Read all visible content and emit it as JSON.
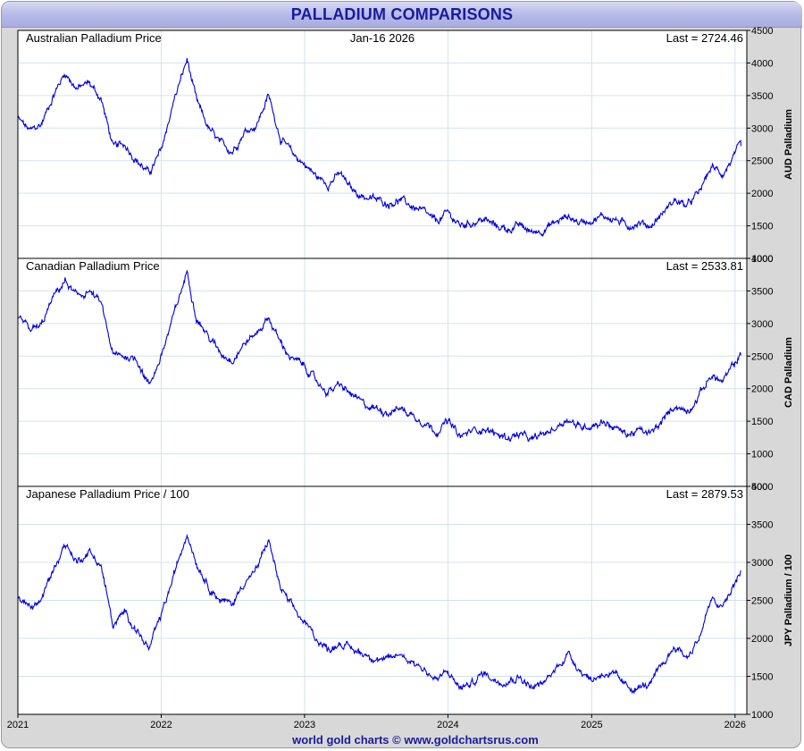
{
  "header": {
    "title": "PALLADIUM COMPARISONS"
  },
  "footer": {
    "credit": "world gold charts © www.goldchartsrus.com"
  },
  "colors": {
    "line": "#0000dd",
    "grid": "#d0e4ea",
    "panel_bg": "#ffffff",
    "title": "#1a1aa0"
  },
  "chart_data": [
    {
      "type": "line",
      "panel_label": "Australian Palladium Price",
      "date_label": "Jan-16 2026",
      "last_label": "Last = 2724.46",
      "ylabel": "AUD Palladium",
      "ylim": [
        1000,
        4500
      ],
      "yticks": [
        "1000",
        "1500",
        "2000",
        "2500",
        "3000",
        "3500",
        "4000",
        "4500"
      ],
      "series": [
        {
          "x": [
            "2021-01-01",
            "2021-02-01",
            "2021-03-01",
            "2021-04-01",
            "2021-05-01",
            "2021-06-01",
            "2021-07-01",
            "2021-08-01",
            "2021-09-01",
            "2021-10-01",
            "2021-11-01",
            "2021-12-01",
            "2022-01-01",
            "2022-02-01",
            "2022-03-08",
            "2022-04-01",
            "2022-05-01",
            "2022-06-01",
            "2022-07-01",
            "2022-08-01",
            "2022-09-01",
            "2022-10-01",
            "2022-11-01",
            "2022-12-01",
            "2023-01-01",
            "2023-02-01",
            "2023-03-01",
            "2023-04-01",
            "2023-05-01",
            "2023-06-01",
            "2023-07-01",
            "2023-08-01",
            "2023-09-01",
            "2023-10-01",
            "2023-11-01",
            "2023-12-01",
            "2024-01-01",
            "2024-02-01",
            "2024-03-01",
            "2024-04-01",
            "2024-05-01",
            "2024-06-01",
            "2024-07-01",
            "2024-08-01",
            "2024-09-01",
            "2024-10-01",
            "2024-11-01",
            "2024-12-01",
            "2025-01-01",
            "2025-02-01",
            "2025-03-01",
            "2025-04-01",
            "2025-05-01",
            "2025-06-01",
            "2025-07-01",
            "2025-08-01",
            "2025-09-01",
            "2025-10-01",
            "2025-11-01",
            "2025-12-01",
            "2026-01-16"
          ],
          "y": [
            3150,
            2950,
            3050,
            3500,
            3850,
            3600,
            3700,
            3450,
            2700,
            2750,
            2500,
            2300,
            2650,
            3400,
            4050,
            3400,
            3000,
            2750,
            2650,
            2950,
            3050,
            3500,
            2850,
            2600,
            2450,
            2250,
            2150,
            2300,
            2050,
            1950,
            1900,
            1850,
            1900,
            1800,
            1700,
            1550,
            1700,
            1500,
            1550,
            1600,
            1500,
            1450,
            1500,
            1400,
            1450,
            1550,
            1650,
            1550,
            1600,
            1650,
            1600,
            1500,
            1550,
            1500,
            1700,
            1900,
            1800,
            2000,
            2400,
            2300,
            2724
          ]
        }
      ]
    },
    {
      "type": "line",
      "panel_label": "Canadian Palladium Price",
      "last_label": "Last = 2533.81",
      "ylabel": "CAD Palladium",
      "ylim": [
        500,
        4000
      ],
      "yticks": [
        "500",
        "1000",
        "1500",
        "2000",
        "2500",
        "3000",
        "3500",
        "4000"
      ],
      "series": [
        {
          "x": [
            "2021-01-01",
            "2021-02-01",
            "2021-03-01",
            "2021-04-01",
            "2021-05-01",
            "2021-06-01",
            "2021-07-01",
            "2021-08-01",
            "2021-09-01",
            "2021-10-01",
            "2021-11-01",
            "2021-12-01",
            "2022-01-01",
            "2022-02-01",
            "2022-03-08",
            "2022-04-01",
            "2022-05-01",
            "2022-06-01",
            "2022-07-01",
            "2022-08-01",
            "2022-09-01",
            "2022-10-01",
            "2022-11-01",
            "2022-12-01",
            "2023-01-01",
            "2023-02-01",
            "2023-03-01",
            "2023-04-01",
            "2023-05-01",
            "2023-06-01",
            "2023-07-01",
            "2023-08-01",
            "2023-09-01",
            "2023-10-01",
            "2023-11-01",
            "2023-12-01",
            "2024-01-01",
            "2024-02-01",
            "2024-03-01",
            "2024-04-01",
            "2024-05-01",
            "2024-06-01",
            "2024-07-01",
            "2024-08-01",
            "2024-09-01",
            "2024-10-01",
            "2024-11-01",
            "2024-12-01",
            "2025-01-01",
            "2025-02-01",
            "2025-03-01",
            "2025-04-01",
            "2025-05-01",
            "2025-06-01",
            "2025-07-01",
            "2025-08-01",
            "2025-09-01",
            "2025-10-01",
            "2025-11-01",
            "2025-12-01",
            "2026-01-16"
          ],
          "y": [
            3100,
            2900,
            2950,
            3400,
            3650,
            3400,
            3500,
            3300,
            2500,
            2500,
            2450,
            2050,
            2500,
            3100,
            3800,
            3100,
            2800,
            2550,
            2450,
            2700,
            2850,
            3100,
            2700,
            2450,
            2350,
            2100,
            1950,
            2050,
            1900,
            1750,
            1700,
            1650,
            1700,
            1600,
            1500,
            1350,
            1500,
            1250,
            1350,
            1400,
            1300,
            1250,
            1300,
            1200,
            1300,
            1400,
            1550,
            1400,
            1450,
            1500,
            1400,
            1300,
            1350,
            1300,
            1500,
            1750,
            1650,
            1900,
            2200,
            2100,
            2534
          ]
        }
      ]
    },
    {
      "type": "line",
      "panel_label": "Japanese Palladium Price / 100",
      "last_label": "Last = 2879.53",
      "ylabel": "JPY Palladium / 100",
      "ylim": [
        1000,
        4000
      ],
      "yticks": [
        "1000",
        "1500",
        "2000",
        "2500",
        "3000",
        "3500",
        "4000"
      ],
      "series": [
        {
          "x": [
            "2021-01-01",
            "2021-02-01",
            "2021-03-01",
            "2021-04-01",
            "2021-05-01",
            "2021-06-01",
            "2021-07-01",
            "2021-08-01",
            "2021-09-01",
            "2021-10-01",
            "2021-11-01",
            "2021-12-01",
            "2022-01-01",
            "2022-02-01",
            "2022-03-08",
            "2022-04-01",
            "2022-05-01",
            "2022-06-01",
            "2022-07-01",
            "2022-08-01",
            "2022-09-01",
            "2022-10-01",
            "2022-11-01",
            "2022-12-01",
            "2023-01-01",
            "2023-02-01",
            "2023-03-01",
            "2023-04-01",
            "2023-05-01",
            "2023-06-01",
            "2023-07-01",
            "2023-08-01",
            "2023-09-01",
            "2023-10-01",
            "2023-11-01",
            "2023-12-01",
            "2024-01-01",
            "2024-02-01",
            "2024-03-01",
            "2024-04-01",
            "2024-05-01",
            "2024-06-01",
            "2024-07-01",
            "2024-08-01",
            "2024-09-01",
            "2024-10-01",
            "2024-11-01",
            "2024-12-01",
            "2025-01-01",
            "2025-02-01",
            "2025-03-01",
            "2025-04-01",
            "2025-05-01",
            "2025-06-01",
            "2025-07-01",
            "2025-08-01",
            "2025-09-01",
            "2025-10-01",
            "2025-11-01",
            "2025-12-01",
            "2026-01-16"
          ],
          "y": [
            2550,
            2400,
            2500,
            2900,
            3250,
            3000,
            3150,
            2950,
            2150,
            2350,
            2100,
            1850,
            2300,
            2800,
            3400,
            3000,
            2700,
            2500,
            2450,
            2750,
            2900,
            3300,
            2650,
            2400,
            2200,
            2000,
            1850,
            1950,
            1850,
            1800,
            1750,
            1700,
            1800,
            1700,
            1600,
            1450,
            1550,
            1350,
            1400,
            1550,
            1450,
            1450,
            1500,
            1350,
            1400,
            1600,
            1800,
            1600,
            1450,
            1550,
            1500,
            1350,
            1350,
            1400,
            1650,
            1900,
            1750,
            2000,
            2500,
            2400,
            2880
          ]
        }
      ]
    }
  ],
  "x_axis": {
    "range": [
      "2021-01-01",
      "2026-01-31"
    ],
    "ticks": [
      {
        "date": "2021-01-01",
        "label": "2021"
      },
      {
        "date": "2022-01-01",
        "label": "2022"
      },
      {
        "date": "2023-01-01",
        "label": "2023"
      },
      {
        "date": "2024-01-01",
        "label": "2024"
      },
      {
        "date": "2025-01-01",
        "label": "2025"
      },
      {
        "date": "2026-01-01",
        "label": "2026"
      }
    ]
  }
}
